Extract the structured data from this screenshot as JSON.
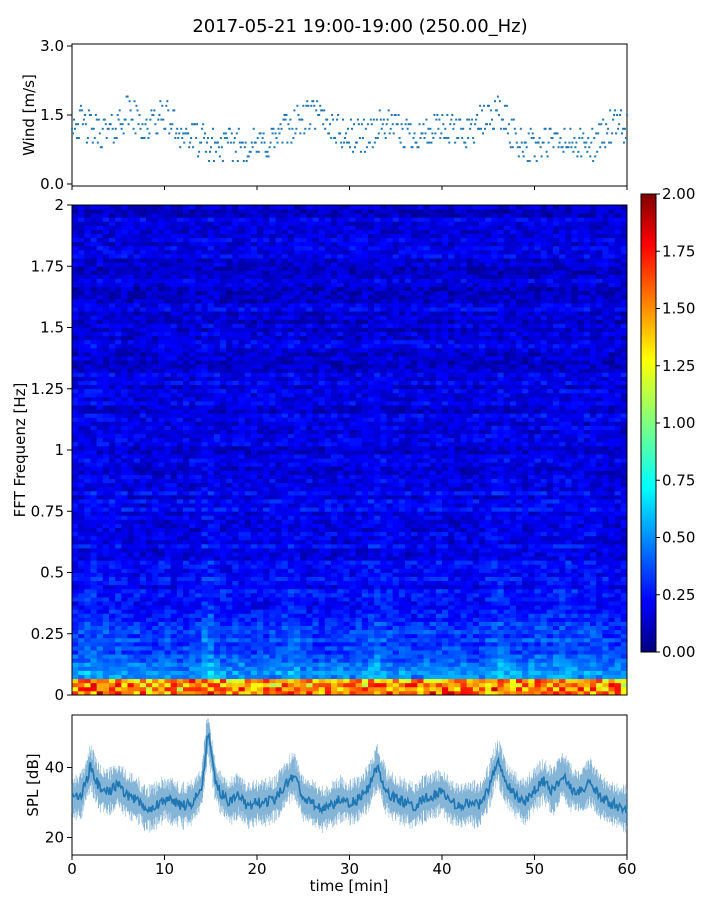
{
  "chart_data": [
    {
      "type": "scatter",
      "title": "2017-05-21 19:00-19:00 (250.00_Hz)",
      "ylabel": "Wind [m/s]",
      "xlim": [
        0,
        60
      ],
      "ylim": [
        0,
        3.0
      ],
      "yticks": [
        "0.0",
        "1.5",
        "3.0"
      ],
      "color": "#1f77b4",
      "series": [
        {
          "x": [
            0,
            2,
            4,
            6,
            8,
            10,
            12,
            14,
            16,
            18,
            20,
            22,
            24,
            26,
            28,
            30,
            32,
            34,
            36,
            38,
            40,
            42,
            44,
            46,
            48,
            50,
            52,
            54,
            56,
            58,
            60
          ],
          "values": [
            1.4,
            1.2,
            1.1,
            1.6,
            1.2,
            1.5,
            1.1,
            0.9,
            0.8,
            0.9,
            0.8,
            1.0,
            1.3,
            1.5,
            1.3,
            1.0,
            1.1,
            1.3,
            1.1,
            1.1,
            1.2,
            1.1,
            1.3,
            1.6,
            1.0,
            0.8,
            0.9,
            0.9,
            0.8,
            1.2,
            1.2
          ]
        }
      ]
    },
    {
      "type": "heatmap",
      "ylabel": "FFT Frequenz [Hz]",
      "xlim": [
        0,
        60
      ],
      "ylim": [
        0,
        2
      ],
      "yticks": [
        "0",
        "0.25",
        "0.5",
        "0.75",
        "1",
        "1.25",
        "1.5",
        "1.75",
        "2"
      ],
      "colorbar": {
        "min": 0.0,
        "max": 2.0,
        "ticks": [
          "0.00",
          "0.25",
          "0.50",
          "0.75",
          "1.00",
          "1.25",
          "1.50",
          "1.75",
          "2.00"
        ],
        "colormap": "jet"
      }
    },
    {
      "type": "line",
      "xlabel": "time [min]",
      "ylabel": "SPL [dB]",
      "xlim": [
        0,
        60
      ],
      "ylim": [
        15,
        55
      ],
      "yticks": [
        "20",
        "40"
      ],
      "xticks": [
        "0",
        "10",
        "20",
        "30",
        "40",
        "50",
        "60"
      ],
      "color": "#1f77b4",
      "series": [
        {
          "x": [
            0,
            1,
            2,
            3,
            4,
            5,
            6,
            7,
            8,
            9,
            10,
            11,
            12,
            13,
            14,
            14.7,
            15.5,
            16,
            17,
            18,
            19,
            20,
            21,
            22,
            23,
            24,
            25,
            26,
            27,
            28,
            29,
            30,
            31,
            32,
            33,
            34,
            35,
            36,
            37,
            38,
            39,
            40,
            41,
            42,
            43,
            44,
            45,
            46,
            47,
            48,
            49,
            50,
            51,
            52,
            53,
            54,
            55,
            56,
            57,
            58,
            59,
            60
          ],
          "values": [
            31,
            32,
            40,
            34,
            33,
            35,
            32,
            31,
            28,
            29,
            31,
            30,
            29,
            30,
            34,
            50,
            36,
            33,
            30,
            32,
            29,
            30,
            30,
            31,
            35,
            38,
            31,
            30,
            28,
            29,
            31,
            30,
            31,
            34,
            40,
            33,
            31,
            30,
            29,
            31,
            32,
            33,
            30,
            29,
            30,
            29,
            34,
            42,
            35,
            32,
            30,
            34,
            36,
            33,
            38,
            34,
            33,
            36,
            32,
            30,
            29,
            28
          ]
        }
      ]
    }
  ]
}
